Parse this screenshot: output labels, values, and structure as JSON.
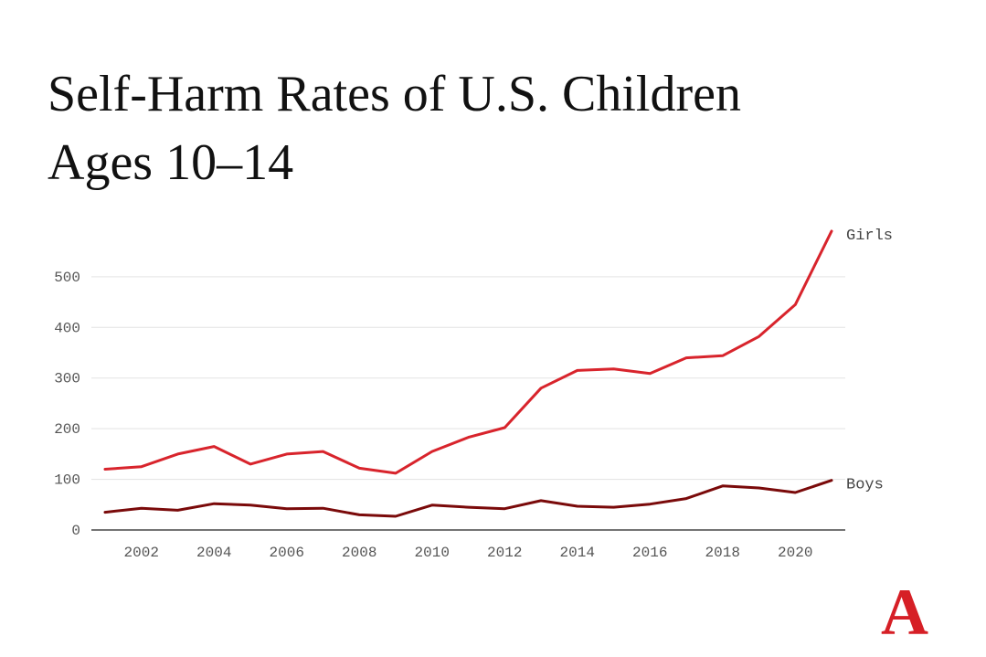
{
  "chart_data": {
    "type": "line",
    "title_line1": "Self-Harm Rates of U.S. Children",
    "title_line2": "Ages 10–14",
    "xlabel": "",
    "ylabel": "",
    "xlim": [
      2001,
      2021
    ],
    "ylim": [
      0,
      590
    ],
    "y_ticks": [
      0,
      100,
      200,
      300,
      400,
      500
    ],
    "x_ticks": [
      2002,
      2004,
      2006,
      2008,
      2010,
      2012,
      2014,
      2016,
      2018,
      2020
    ],
    "grid": true,
    "x": [
      2001,
      2002,
      2003,
      2004,
      2005,
      2006,
      2007,
      2008,
      2009,
      2010,
      2011,
      2012,
      2013,
      2014,
      2015,
      2016,
      2017,
      2018,
      2019,
      2020,
      2021
    ],
    "series": [
      {
        "name": "Girls",
        "color": "#d8242c",
        "values": [
          120,
          125,
          150,
          165,
          130,
          150,
          155,
          122,
          112,
          155,
          183,
          202,
          280,
          315,
          318,
          309,
          340,
          344,
          382,
          445,
          590
        ]
      },
      {
        "name": "Boys",
        "color": "#7a0a0a",
        "values": [
          35,
          43,
          39,
          52,
          49,
          42,
          43,
          30,
          27,
          49,
          45,
          42,
          58,
          47,
          45,
          51,
          62,
          87,
          83,
          74,
          98
        ]
      }
    ]
  },
  "branding": {
    "logo_letter": "A",
    "logo_color": "#d61f26"
  }
}
